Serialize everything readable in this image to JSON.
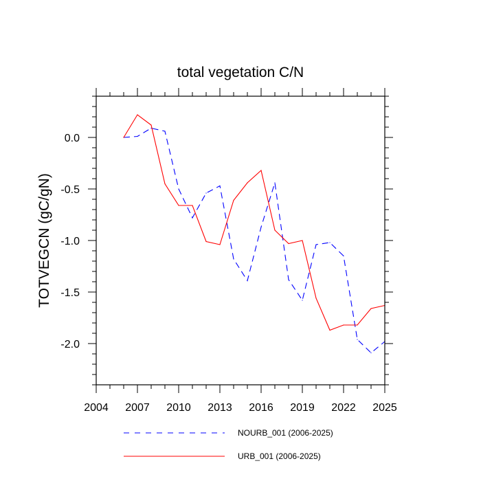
{
  "chart_data": {
    "type": "line",
    "title": "total vegetation C/N",
    "xlabel": "",
    "ylabel": "TOTVEGCN  (gC/gN)",
    "xlim": [
      2004,
      2025
    ],
    "ylim": [
      -2.4,
      0.4
    ],
    "xticks": [
      2004,
      2007,
      2010,
      2013,
      2016,
      2019,
      2022,
      2025
    ],
    "xtick_labels": [
      "2004",
      "2007",
      "2010",
      "2013",
      "2016",
      "2019",
      "2022",
      "2025"
    ],
    "yticks": [
      0.0,
      -0.5,
      -1.0,
      -1.5,
      -2.0
    ],
    "ytick_labels": [
      "0.0",
      "-0.5",
      "-1.0",
      "-1.5",
      "-2.0"
    ],
    "x": [
      2006,
      2007,
      2008,
      2009,
      2010,
      2011,
      2012,
      2013,
      2014,
      2015,
      2016,
      2017,
      2018,
      2019,
      2020,
      2021,
      2022,
      2023,
      2024,
      2025
    ],
    "series": [
      {
        "name": "NOURB_001 (2006-2025)",
        "color": "#0000ff",
        "dash": "dashed",
        "values": [
          0.0,
          0.01,
          0.09,
          0.06,
          -0.5,
          -0.78,
          -0.54,
          -0.47,
          -1.18,
          -1.39,
          -0.87,
          -0.44,
          -1.38,
          -1.58,
          -1.04,
          -1.02,
          -1.15,
          -1.96,
          -2.09,
          -1.98
        ]
      },
      {
        "name": "URB_001 (2006-2025)",
        "color": "#ff0000",
        "dash": "solid",
        "values": [
          0.0,
          0.22,
          0.12,
          -0.45,
          -0.66,
          -0.66,
          -1.01,
          -1.04,
          -0.61,
          -0.44,
          -0.32,
          -0.9,
          -1.03,
          -1.0,
          -1.56,
          -1.87,
          -1.82,
          -1.82,
          -1.66,
          -1.63
        ]
      }
    ]
  }
}
